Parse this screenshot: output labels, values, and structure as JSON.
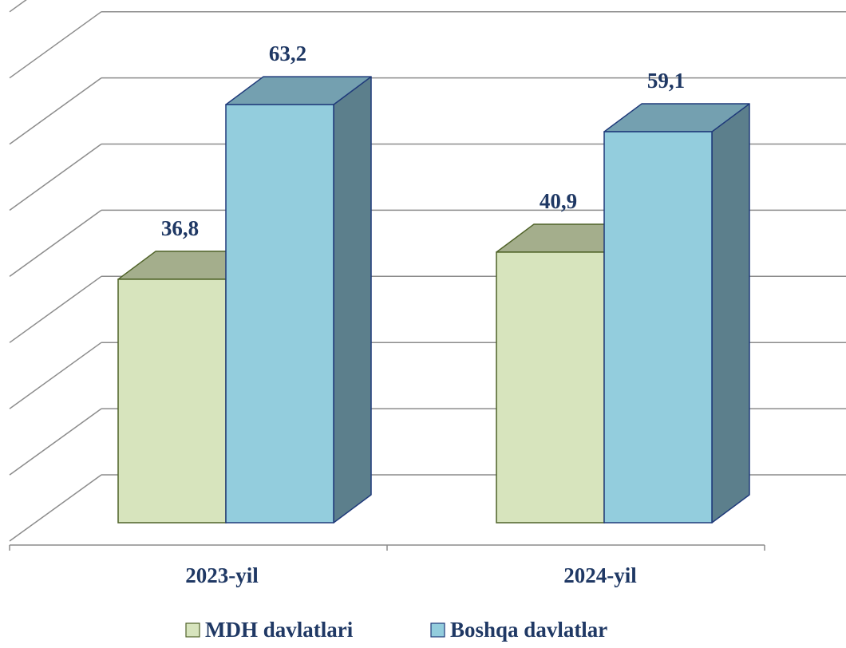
{
  "chart_data": {
    "type": "bar",
    "style": "3d-clustered-column",
    "categories": [
      "2023-yil",
      "2024-yil"
    ],
    "series": [
      {
        "name": "MDH davlatlari",
        "values": [
          36.8,
          40.9
        ],
        "value_labels": [
          "36,8",
          "40,9"
        ],
        "color": "#d7e4bd",
        "edge_color": "#4f6228",
        "side_color": "#a4ae8c",
        "top_color": "#a4ae8c"
      },
      {
        "name": "Boshqa davlatlar",
        "values": [
          63.2,
          59.1
        ],
        "value_labels": [
          "63,2",
          "59,1"
        ],
        "color": "#93cddd",
        "edge_color": "#1f3a7a",
        "side_color": "#5c7f8c",
        "top_color": "#74a0b0"
      }
    ],
    "ylim": [
      0,
      80
    ],
    "y_axis_visible": false,
    "grid": true,
    "legend_position": "bottom",
    "data_label_color": "#1f3864"
  }
}
